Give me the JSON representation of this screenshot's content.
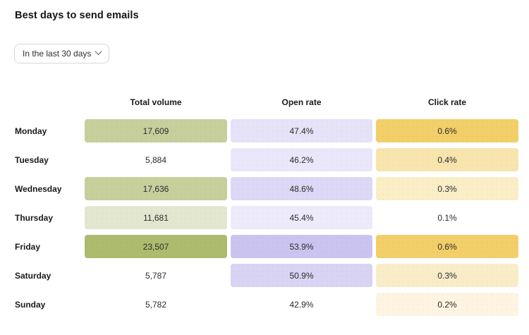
{
  "page_title": "Best days to send emails",
  "dropdown": {
    "selected_label": "In the last 30 days"
  },
  "colors": {
    "volume_scale_high": "#adbb6e",
    "volume_scale_mid": "#c7cf9d",
    "volume_scale_low": "#e3e7d0",
    "open_scale_high": "#cbc4f0",
    "click_scale_high": "#f3cf6a",
    "border": "#d8d8d4",
    "text": "#1a1a1a"
  },
  "table": {
    "columns": [
      "Total volume",
      "Open rate",
      "Click rate"
    ],
    "rows": [
      {
        "day": "Monday",
        "volume": {
          "text": "17,609",
          "bg": "#c7cf9d"
        },
        "open_rate": {
          "text": "47.4%",
          "bg": "#e6e2f8"
        },
        "click_rate": {
          "text": "0.6%",
          "bg": "#f3cf6a"
        }
      },
      {
        "day": "Tuesday",
        "volume": {
          "text": "5,884",
          "bg": null
        },
        "open_rate": {
          "text": "46.2%",
          "bg": "#eae7fa"
        },
        "click_rate": {
          "text": "0.4%",
          "bg": "#f7e5ad"
        }
      },
      {
        "day": "Wednesday",
        "volume": {
          "text": "17,636",
          "bg": "#c7cf9d"
        },
        "open_rate": {
          "text": "48.6%",
          "bg": "#ddd8f5"
        },
        "click_rate": {
          "text": "0.3%",
          "bg": "#faeec7"
        }
      },
      {
        "day": "Thursday",
        "volume": {
          "text": "11,681",
          "bg": "#e3e7d0"
        },
        "open_rate": {
          "text": "45.4%",
          "bg": "#edebfb"
        },
        "click_rate": {
          "text": "0.1%",
          "bg": null
        }
      },
      {
        "day": "Friday",
        "volume": {
          "text": "23,507",
          "bg": "#adbb6e"
        },
        "open_rate": {
          "text": "53.9%",
          "bg": "#cbc4f0"
        },
        "click_rate": {
          "text": "0.6%",
          "bg": "#f3cf6a"
        }
      },
      {
        "day": "Saturday",
        "volume": {
          "text": "5,787",
          "bg": null
        },
        "open_rate": {
          "text": "50.9%",
          "bg": "#d9d3f4"
        },
        "click_rate": {
          "text": "0.3%",
          "bg": "#f9edc9"
        }
      },
      {
        "day": "Sunday",
        "volume": {
          "text": "5,782",
          "bg": null
        },
        "open_rate": {
          "text": "42.9%",
          "bg": null
        },
        "click_rate": {
          "text": "0.2%",
          "bg": "#fdf5e2"
        }
      }
    ]
  },
  "chart_data": {
    "type": "heatmap",
    "title": "Best days to send emails",
    "time_range": "In the last 30 days",
    "rows": [
      "Monday",
      "Tuesday",
      "Wednesday",
      "Thursday",
      "Friday",
      "Saturday",
      "Sunday"
    ],
    "columns": [
      "Total volume",
      "Open rate",
      "Click rate"
    ],
    "series": [
      {
        "name": "Total volume",
        "values": [
          17609,
          5884,
          17636,
          11681,
          23507,
          5787,
          5782
        ]
      },
      {
        "name": "Open rate",
        "unit": "%",
        "values": [
          47.4,
          46.2,
          48.6,
          45.4,
          53.9,
          50.9,
          42.9
        ]
      },
      {
        "name": "Click rate",
        "unit": "%",
        "values": [
          0.6,
          0.4,
          0.3,
          0.1,
          0.6,
          0.3,
          0.2
        ]
      }
    ],
    "layout": {
      "legend": false,
      "grid": false,
      "cell_color_encodes": "value magnitude per column"
    }
  }
}
